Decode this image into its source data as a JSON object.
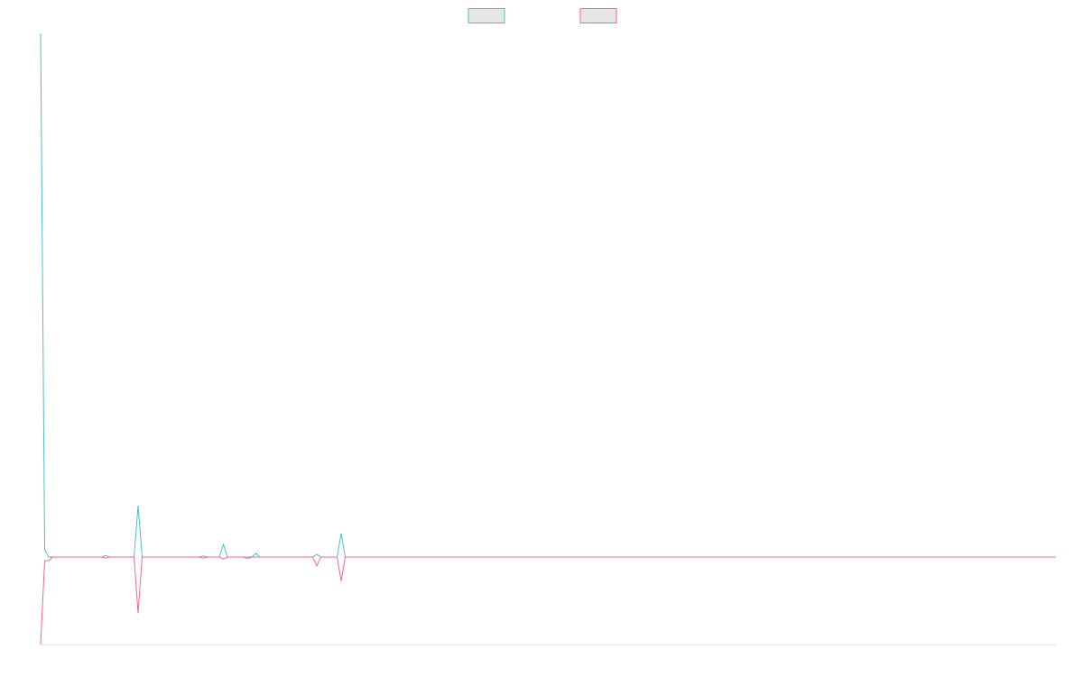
{
  "chart_data": {
    "type": "line",
    "categories": [
      null,
      null,
      null,
      null,
      null,
      null,
      null,
      null,
      null,
      null,
      null,
      null,
      null,
      null,
      null,
      null,
      null,
      null,
      null,
      null,
      null,
      null,
      null,
      null,
      null,
      null,
      null,
      null,
      null,
      null,
      null,
      null,
      null,
      null,
      null,
      null,
      null,
      null,
      null,
      null,
      null,
      null,
      null,
      null,
      null,
      null,
      null,
      null,
      null,
      null,
      null,
      null,
      null,
      null,
      null,
      null,
      null,
      null,
      null,
      null,
      null,
      null,
      null,
      null,
      null,
      null,
      null,
      null,
      null,
      null,
      null,
      null,
      null,
      null,
      null,
      null,
      null,
      null,
      null,
      null,
      null,
      null,
      null,
      null,
      null,
      null,
      null,
      null,
      null,
      null,
      null,
      null,
      null,
      null,
      null,
      null,
      null,
      null,
      null,
      null,
      null,
      null,
      null,
      null,
      null,
      null,
      null,
      null,
      null,
      null,
      null,
      null,
      null,
      null,
      null,
      null,
      null,
      null,
      null,
      null,
      null,
      null,
      null,
      null,
      null,
      null,
      null,
      null,
      null,
      null,
      null,
      null,
      null,
      null,
      null,
      null,
      null,
      null,
      null,
      null,
      null,
      null,
      null,
      null,
      null,
      null,
      null,
      null,
      null,
      null,
      null,
      null,
      null,
      null,
      null,
      null,
      null,
      null,
      null,
      null,
      null,
      null,
      null,
      null,
      null,
      null,
      null,
      null,
      null,
      null,
      null,
      null,
      null,
      null,
      null,
      null,
      null,
      null,
      null,
      null,
      null,
      null,
      null,
      null,
      null,
      null,
      null,
      null,
      null,
      null,
      null,
      null,
      null,
      null,
      null,
      null,
      null,
      null,
      null,
      null,
      null,
      null,
      null,
      null,
      null,
      null,
      null,
      null,
      null,
      null,
      null,
      null,
      null,
      null,
      null,
      null,
      null,
      null,
      null,
      null,
      null,
      null,
      null,
      null,
      null,
      null,
      null,
      null,
      null,
      null,
      null,
      null,
      null,
      null,
      null,
      null,
      null,
      null,
      null,
      null,
      null,
      null,
      null,
      null,
      null,
      null,
      null,
      null,
      null,
      null,
      null
    ],
    "series": [
      {
        "color": "#4bc0c0",
        "values": [
          100,
          1.4,
          0,
          0,
          0,
          0,
          0,
          0,
          0,
          0,
          0,
          0,
          0,
          0,
          0,
          0,
          0.3,
          0,
          0,
          0,
          0,
          0,
          0,
          0,
          9.8,
          0,
          0,
          0,
          0,
          0,
          0,
          0,
          0,
          0,
          0,
          0,
          0,
          0,
          0,
          0,
          0.2,
          0,
          0,
          0,
          0,
          2.4,
          0,
          0,
          0,
          0,
          0,
          0,
          0,
          0.7,
          0,
          0,
          0,
          0,
          0,
          0,
          0,
          0,
          0,
          0,
          0,
          0,
          0,
          0,
          0.5,
          0,
          0,
          0,
          0,
          0,
          4.5,
          0,
          0,
          0,
          0,
          0,
          0,
          0,
          0,
          0,
          0,
          0,
          0,
          0,
          0,
          0,
          0,
          0,
          0,
          0,
          0,
          0,
          0,
          0,
          0,
          0,
          0,
          0,
          0,
          0,
          0,
          0,
          0,
          0,
          0,
          0,
          0,
          0,
          0,
          0,
          0,
          0,
          0,
          0,
          0,
          0,
          0,
          0,
          0,
          0,
          0,
          0,
          0,
          0,
          0,
          0,
          0,
          0,
          0,
          0,
          0,
          0,
          0,
          0,
          0,
          0,
          0,
          0,
          0,
          0,
          0,
          0,
          0,
          0,
          0,
          0,
          0,
          0,
          0,
          0,
          0,
          0,
          0,
          0,
          0,
          0,
          0,
          0,
          0,
          0,
          0,
          0,
          0,
          0,
          0,
          0,
          0,
          0,
          0,
          0,
          0,
          0,
          0,
          0,
          0,
          0,
          0,
          0,
          0,
          0,
          0,
          0,
          0,
          0,
          0,
          0,
          0,
          0,
          0,
          0,
          0,
          0,
          0,
          0,
          0,
          0,
          0,
          0,
          0,
          0,
          0,
          0,
          0,
          0,
          0,
          0,
          0,
          0,
          0,
          0,
          0,
          0,
          0,
          0,
          0,
          0,
          0,
          0,
          0,
          0,
          0,
          0,
          0,
          0,
          0,
          0,
          0,
          0,
          0,
          0,
          0,
          0,
          0,
          0,
          0,
          0,
          0,
          0,
          0,
          0,
          0,
          0,
          0,
          0,
          0,
          0,
          0
        ]
      },
      {
        "color": "#ff6384",
        "values": [
          -16.7,
          -0.7,
          -0.7,
          0,
          0,
          0,
          0,
          0,
          0,
          0,
          0,
          0,
          0,
          0,
          0,
          0,
          -0.2,
          0,
          0,
          0,
          0,
          0,
          0,
          0,
          -10.7,
          0,
          0,
          0,
          0,
          0,
          0,
          0,
          0,
          0,
          0,
          0,
          0,
          0,
          0,
          0,
          -0.2,
          0,
          0,
          0,
          0,
          -0.4,
          0,
          0,
          0,
          0,
          0,
          -0.3,
          0,
          0,
          0,
          0,
          0,
          0,
          0,
          0,
          0,
          0,
          0,
          0,
          0,
          0,
          0,
          0,
          -1.7,
          0,
          0,
          0,
          0,
          0,
          -4.6,
          0,
          0,
          0,
          0,
          0,
          0,
          0,
          0,
          0,
          0,
          0,
          0,
          0,
          0,
          0,
          0,
          0,
          0,
          0,
          0,
          0,
          0,
          0,
          0,
          0,
          0,
          0,
          0,
          0,
          0,
          0,
          0,
          0,
          0,
          0,
          0,
          0,
          0,
          0,
          0,
          0,
          0,
          0,
          0,
          0,
          0,
          0,
          0,
          0,
          0,
          0,
          0,
          0,
          0,
          0,
          0,
          0,
          0,
          0,
          0,
          0,
          0,
          0,
          0,
          0,
          0,
          0,
          0,
          0,
          0,
          0,
          0,
          0,
          0,
          0,
          0,
          0,
          0,
          0,
          0,
          0,
          0,
          0,
          0,
          0,
          0,
          0,
          0,
          0,
          0,
          0,
          0,
          0,
          0,
          0,
          0,
          0,
          0,
          0,
          0,
          0,
          0,
          0,
          0,
          0,
          0,
          0,
          0,
          0,
          0,
          0,
          0,
          0,
          0,
          0,
          0,
          0,
          0,
          0,
          0,
          0,
          0,
          0,
          0,
          0,
          0,
          0,
          0,
          0,
          0,
          0,
          0,
          0,
          0,
          0,
          0,
          0,
          0,
          0,
          0,
          0,
          0,
          0,
          0,
          0,
          0,
          0,
          0,
          0,
          0,
          0,
          0,
          0,
          0,
          0,
          0,
          0,
          0,
          0,
          0,
          0,
          0,
          0,
          0,
          0,
          0,
          0,
          0,
          0,
          0,
          0,
          0,
          0,
          0,
          0,
          0
        ]
      }
    ],
    "ylim": [
      -16.7,
      100
    ]
  }
}
